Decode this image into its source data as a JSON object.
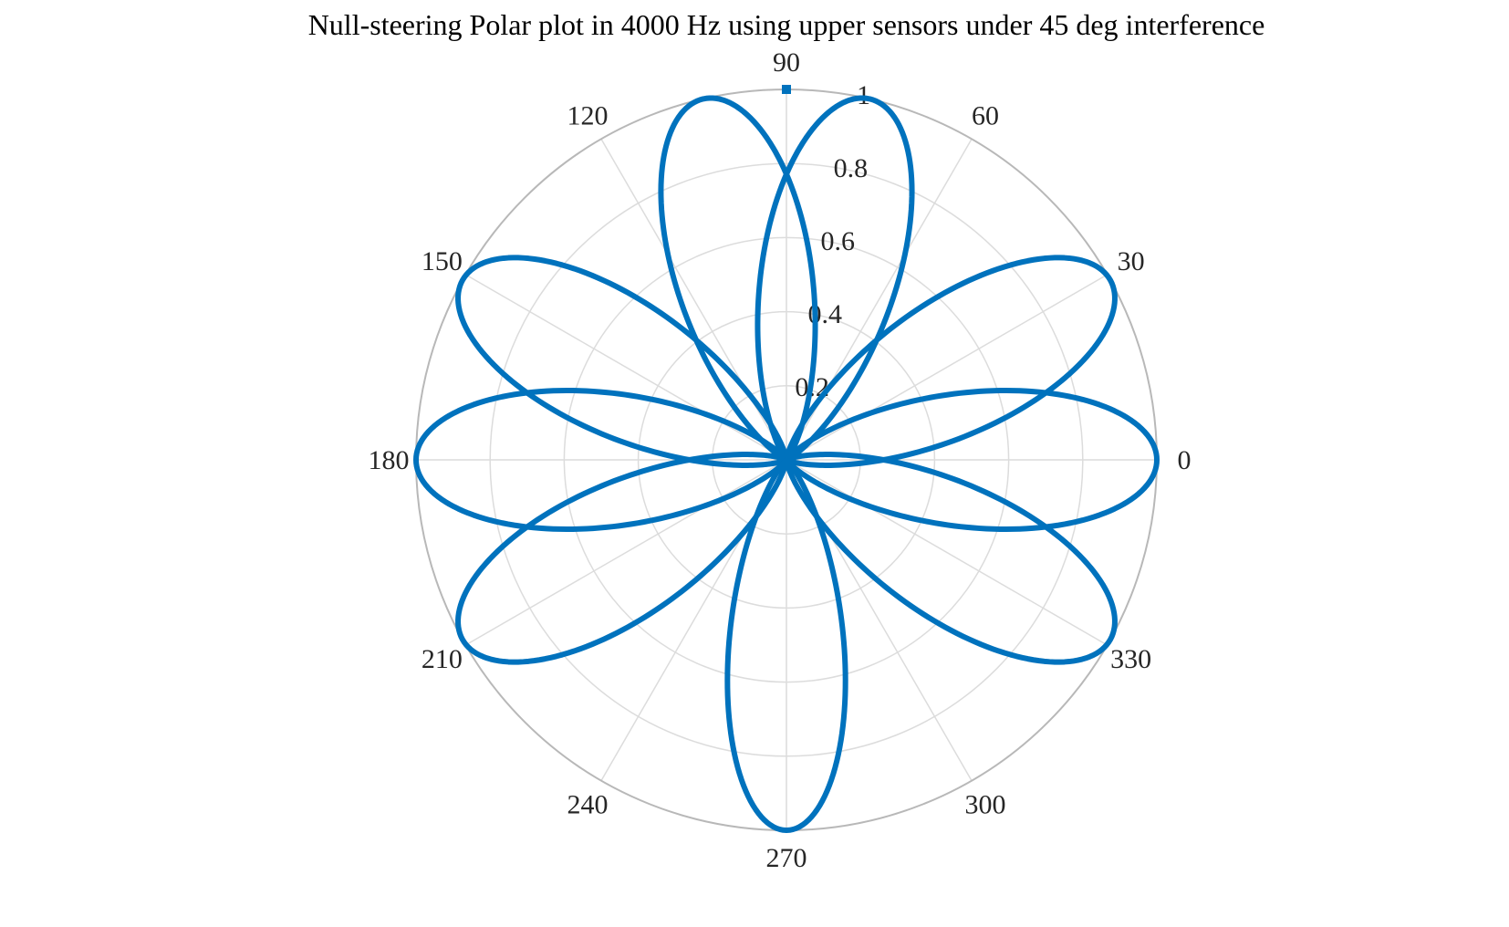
{
  "chart_data": {
    "type": "polar-line",
    "title": "Null-steering Polar plot in 4000 Hz using upper sensors under 45 deg interference",
    "theta_unit": "degrees",
    "theta_ticks": [
      "0",
      "30",
      "60",
      "90",
      "120",
      "150",
      "180",
      "210",
      "240",
      "270",
      "300",
      "330"
    ],
    "r_ticks": [
      "0.2",
      "0.4",
      "0.6",
      "0.8",
      "1"
    ],
    "r_tick_values": [
      0.2,
      0.4,
      0.6,
      0.8,
      1.0
    ],
    "rlim": [
      0,
      1
    ],
    "grid": true,
    "series": [
      {
        "color": "#0072BD",
        "pattern_description": "lobe pattern",
        "lobes": [
          {
            "center_deg": 0,
            "peak": 1.0
          },
          {
            "center_deg": 29,
            "peak": 1.0
          },
          {
            "center_deg": 77,
            "peak": 1.0
          },
          {
            "center_deg": 103,
            "peak": 1.0
          },
          {
            "center_deg": 151,
            "peak": 1.0
          },
          {
            "center_deg": 180,
            "peak": 1.0
          },
          {
            "center_deg": 209,
            "peak": 1.0
          },
          {
            "center_deg": 270,
            "peak": 1.0
          },
          {
            "center_deg": 331,
            "peak": 1.0
          }
        ],
        "marker": {
          "theta": 90,
          "r": 1.0
        }
      }
    ],
    "colors": {
      "line": "#0072BD",
      "grid": "#dcdcdc",
      "outer": "#b8b8b8",
      "text": "#262626"
    }
  }
}
